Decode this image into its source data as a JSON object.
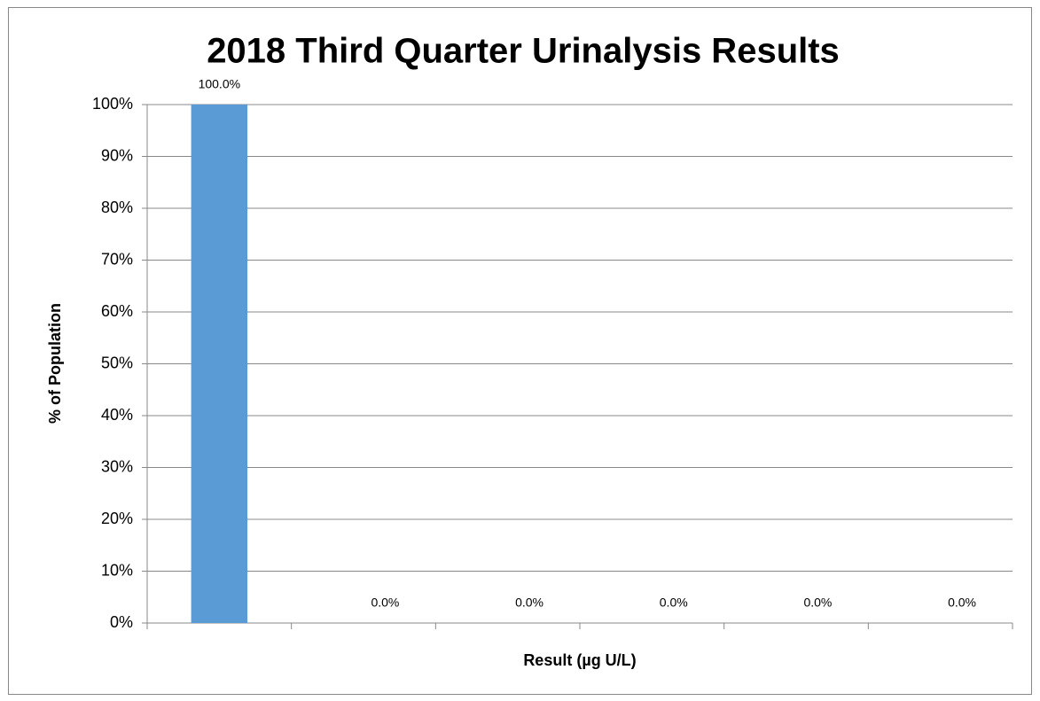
{
  "chart_data": {
    "type": "bar",
    "title": "2018  Third Quarter Urinalysis Results",
    "x_label": "Result (µg U/L)",
    "y_label": "% of Population",
    "categories": [
      null,
      null,
      null,
      null,
      null,
      null
    ],
    "values": [
      100,
      0,
      0,
      0,
      0,
      0
    ],
    "value_labels": [
      "100.0%",
      "0.0%",
      "0.0%",
      "0.0%",
      "0.0%",
      "0.0%"
    ],
    "color": "#5b9bd5",
    "ylim": [
      0,
      100
    ],
    "yticks": [
      {
        "value": 0,
        "label": "0%"
      },
      {
        "value": 10,
        "label": "10%"
      },
      {
        "value": 20,
        "label": "20%"
      },
      {
        "value": 30,
        "label": "30%"
      },
      {
        "value": 40,
        "label": "40%"
      },
      {
        "value": 50,
        "label": "50%"
      },
      {
        "value": 60,
        "label": "60%"
      },
      {
        "value": 70,
        "label": "70%"
      },
      {
        "value": 80,
        "label": "80%"
      },
      {
        "value": 90,
        "label": "90%"
      },
      {
        "value": 100,
        "label": "100%"
      }
    ],
    "grid": true
  }
}
